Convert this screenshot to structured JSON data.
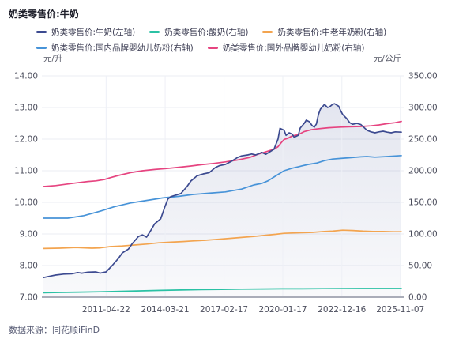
{
  "title": "奶类零售价:牛奶",
  "footer": {
    "source": "数据来源：同花顺iFinD"
  },
  "chart_data": {
    "type": "line",
    "title": "奶类零售价:牛奶",
    "grid": true,
    "legend_position": "top",
    "legend_rows": [
      [
        0,
        1,
        2
      ],
      [
        3,
        4
      ]
    ],
    "left_axis": {
      "unit": "元/升",
      "min": 7,
      "max": 14,
      "ticks": [
        "14.00",
        "13.00",
        "12.00",
        "11.00",
        "10.00",
        "9.00",
        "8.00",
        "7.00"
      ]
    },
    "right_axis": {
      "unit": "元/公斤",
      "min": 0,
      "max": 350,
      "ticks": [
        "350.00",
        "300.00",
        "250.00",
        "200.00",
        "150.00",
        "100.00",
        "50.00",
        "0.00"
      ]
    },
    "x_axis": {
      "domain": [
        2008.2,
        2025.9
      ],
      "ticks": [
        {
          "label": "2011-04-22",
          "t": 2011.3
        },
        {
          "label": "2014-03-21",
          "t": 2014.22
        },
        {
          "label": "2017-02-17",
          "t": 2017.13
        },
        {
          "label": "2020-01-17",
          "t": 2020.04
        },
        {
          "label": "2022-12-16",
          "t": 2022.96
        },
        {
          "label": "2025-11-07",
          "t": 2025.85
        }
      ]
    },
    "series": [
      {
        "name": "奶类零售价:牛奶(左轴)",
        "axis": "left",
        "color": "#3c4a90",
        "area": true,
        "points": [
          [
            2008.2,
            7.62
          ],
          [
            2008.5,
            7.66
          ],
          [
            2008.8,
            7.7
          ],
          [
            2009.2,
            7.73
          ],
          [
            2009.6,
            7.74
          ],
          [
            2009.9,
            7.78
          ],
          [
            2010.1,
            7.76
          ],
          [
            2010.4,
            7.79
          ],
          [
            2010.8,
            7.8
          ],
          [
            2011.0,
            7.76
          ],
          [
            2011.3,
            7.8
          ],
          [
            2011.6,
            8.0
          ],
          [
            2011.9,
            8.22
          ],
          [
            2012.1,
            8.4
          ],
          [
            2012.4,
            8.52
          ],
          [
            2012.6,
            8.7
          ],
          [
            2012.9,
            8.92
          ],
          [
            2013.1,
            8.97
          ],
          [
            2013.3,
            8.9
          ],
          [
            2013.5,
            9.1
          ],
          [
            2013.7,
            9.32
          ],
          [
            2014.0,
            9.48
          ],
          [
            2014.2,
            9.85
          ],
          [
            2014.35,
            10.1
          ],
          [
            2014.5,
            10.18
          ],
          [
            2014.7,
            10.22
          ],
          [
            2015.0,
            10.28
          ],
          [
            2015.3,
            10.5
          ],
          [
            2015.5,
            10.68
          ],
          [
            2015.8,
            10.84
          ],
          [
            2016.1,
            10.9
          ],
          [
            2016.4,
            10.94
          ],
          [
            2016.7,
            11.1
          ],
          [
            2016.9,
            11.16
          ],
          [
            2017.2,
            11.2
          ],
          [
            2017.5,
            11.3
          ],
          [
            2017.8,
            11.42
          ],
          [
            2018.0,
            11.47
          ],
          [
            2018.3,
            11.5
          ],
          [
            2018.5,
            11.53
          ],
          [
            2018.7,
            11.5
          ],
          [
            2019.0,
            11.58
          ],
          [
            2019.2,
            11.52
          ],
          [
            2019.4,
            11.6
          ],
          [
            2019.6,
            11.68
          ],
          [
            2019.8,
            12.0
          ],
          [
            2019.9,
            12.34
          ],
          [
            2020.1,
            12.28
          ],
          [
            2020.2,
            12.12
          ],
          [
            2020.35,
            12.2
          ],
          [
            2020.5,
            12.16
          ],
          [
            2020.6,
            12.06
          ],
          [
            2020.8,
            12.12
          ],
          [
            2020.9,
            12.35
          ],
          [
            2021.1,
            12.5
          ],
          [
            2021.2,
            12.6
          ],
          [
            2021.35,
            12.55
          ],
          [
            2021.5,
            12.42
          ],
          [
            2021.6,
            12.38
          ],
          [
            2021.7,
            12.48
          ],
          [
            2021.8,
            12.78
          ],
          [
            2021.9,
            12.95
          ],
          [
            2022.0,
            13.02
          ],
          [
            2022.1,
            13.1
          ],
          [
            2022.25,
            13.0
          ],
          [
            2022.35,
            13.02
          ],
          [
            2022.5,
            13.1
          ],
          [
            2022.6,
            13.12
          ],
          [
            2022.8,
            13.04
          ],
          [
            2022.9,
            12.9
          ],
          [
            2023.0,
            12.78
          ],
          [
            2023.2,
            12.65
          ],
          [
            2023.35,
            12.52
          ],
          [
            2023.5,
            12.47
          ],
          [
            2023.7,
            12.5
          ],
          [
            2023.9,
            12.46
          ],
          [
            2024.0,
            12.4
          ],
          [
            2024.2,
            12.28
          ],
          [
            2024.4,
            12.23
          ],
          [
            2024.6,
            12.2
          ],
          [
            2024.8,
            12.23
          ],
          [
            2025.0,
            12.25
          ],
          [
            2025.2,
            12.22
          ],
          [
            2025.4,
            12.2
          ],
          [
            2025.6,
            12.23
          ],
          [
            2025.9,
            12.22
          ]
        ]
      },
      {
        "name": "奶类零售价:酸奶(右轴)",
        "axis": "right",
        "color": "#2bc1a4",
        "area": false,
        "points": [
          [
            2008.2,
            7.0
          ],
          [
            2009.0,
            7.5
          ],
          [
            2010.0,
            8.0
          ],
          [
            2011.0,
            8.5
          ],
          [
            2012.0,
            9.2
          ],
          [
            2013.0,
            10.0
          ],
          [
            2014.0,
            10.8
          ],
          [
            2015.0,
            11.4
          ],
          [
            2016.0,
            12.0
          ],
          [
            2017.0,
            12.4
          ],
          [
            2018.0,
            12.8
          ],
          [
            2019.0,
            13.0
          ],
          [
            2020.0,
            13.2
          ],
          [
            2021.0,
            13.3
          ],
          [
            2022.0,
            13.5
          ],
          [
            2023.0,
            13.6
          ],
          [
            2024.0,
            13.7
          ],
          [
            2025.0,
            13.8
          ],
          [
            2025.9,
            13.8
          ]
        ]
      },
      {
        "name": "奶类零售价:中老年奶粉(右轴)",
        "axis": "right",
        "color": "#f3a44f",
        "area": false,
        "points": [
          [
            2008.2,
            77
          ],
          [
            2009.0,
            77.5
          ],
          [
            2009.8,
            78.5
          ],
          [
            2010.6,
            77.5
          ],
          [
            2011.0,
            78
          ],
          [
            2011.5,
            80
          ],
          [
            2012.1,
            81
          ],
          [
            2012.7,
            82.5
          ],
          [
            2013.3,
            84
          ],
          [
            2013.9,
            86
          ],
          [
            2014.5,
            87
          ],
          [
            2015.1,
            88
          ],
          [
            2015.6,
            89
          ],
          [
            2016.2,
            90
          ],
          [
            2016.8,
            91.5
          ],
          [
            2017.4,
            93
          ],
          [
            2018.0,
            94.5
          ],
          [
            2018.6,
            96
          ],
          [
            2019.2,
            98
          ],
          [
            2019.7,
            99.5
          ],
          [
            2020.1,
            101
          ],
          [
            2020.5,
            101.5
          ],
          [
            2021.0,
            102
          ],
          [
            2021.5,
            102.5
          ],
          [
            2022.1,
            104
          ],
          [
            2022.5,
            104.5
          ],
          [
            2023.0,
            106
          ],
          [
            2023.5,
            105.5
          ],
          [
            2024.0,
            104.5
          ],
          [
            2024.5,
            104
          ],
          [
            2025.0,
            104
          ],
          [
            2025.5,
            103.5
          ],
          [
            2025.9,
            103.5
          ]
        ]
      },
      {
        "name": "奶类零售价:国内品牌婴幼儿奶粉(右轴)",
        "axis": "right",
        "color": "#4793d8",
        "area": false,
        "points": [
          [
            2008.2,
            125
          ],
          [
            2009.4,
            125
          ],
          [
            2010.2,
            129
          ],
          [
            2011.0,
            136
          ],
          [
            2011.7,
            143
          ],
          [
            2012.5,
            149
          ],
          [
            2013.3,
            153
          ],
          [
            2014.1,
            157
          ],
          [
            2014.9,
            159.5
          ],
          [
            2015.6,
            162.5
          ],
          [
            2016.4,
            164.5
          ],
          [
            2017.2,
            166.5
          ],
          [
            2018.0,
            171
          ],
          [
            2018.6,
            177.5
          ],
          [
            2019.0,
            180
          ],
          [
            2019.3,
            184
          ],
          [
            2019.7,
            192
          ],
          [
            2020.1,
            200
          ],
          [
            2020.5,
            204
          ],
          [
            2020.9,
            207
          ],
          [
            2021.3,
            210
          ],
          [
            2021.7,
            212
          ],
          [
            2022.1,
            216
          ],
          [
            2022.5,
            218.5
          ],
          [
            2022.9,
            219.5
          ],
          [
            2023.3,
            220.5
          ],
          [
            2023.9,
            222
          ],
          [
            2024.2,
            222.5
          ],
          [
            2024.6,
            221.5
          ],
          [
            2025.2,
            222.5
          ],
          [
            2025.9,
            224
          ]
        ]
      },
      {
        "name": "奶类零售价:国外品牌婴幼儿奶粉(右轴)",
        "axis": "right",
        "color": "#e64480",
        "area": false,
        "points": [
          [
            2008.2,
            175
          ],
          [
            2008.8,
            176.5
          ],
          [
            2009.4,
            179
          ],
          [
            2010.0,
            181.5
          ],
          [
            2010.4,
            183
          ],
          [
            2010.8,
            184
          ],
          [
            2011.2,
            186
          ],
          [
            2011.5,
            189
          ],
          [
            2011.9,
            192.5
          ],
          [
            2012.5,
            197
          ],
          [
            2013.1,
            200
          ],
          [
            2013.7,
            202
          ],
          [
            2014.3,
            203.5
          ],
          [
            2014.9,
            205.5
          ],
          [
            2015.5,
            207.5
          ],
          [
            2016.0,
            209.5
          ],
          [
            2016.6,
            211.5
          ],
          [
            2017.2,
            214
          ],
          [
            2017.8,
            217
          ],
          [
            2018.4,
            221
          ],
          [
            2018.8,
            226
          ],
          [
            2019.1,
            229
          ],
          [
            2019.4,
            232
          ],
          [
            2019.6,
            234
          ],
          [
            2019.8,
            238
          ],
          [
            2019.95,
            244
          ],
          [
            2020.1,
            249.5
          ],
          [
            2020.3,
            251.5
          ],
          [
            2020.5,
            255
          ],
          [
            2020.8,
            257
          ],
          [
            2021.1,
            262
          ],
          [
            2021.4,
            264.5
          ],
          [
            2021.7,
            266
          ],
          [
            2022.0,
            267
          ],
          [
            2022.3,
            268
          ],
          [
            2022.6,
            268.5
          ],
          [
            2022.9,
            269
          ],
          [
            2023.3,
            269.5
          ],
          [
            2023.9,
            270
          ],
          [
            2024.4,
            271
          ],
          [
            2024.8,
            272.5
          ],
          [
            2025.2,
            274.5
          ],
          [
            2025.6,
            276
          ],
          [
            2025.9,
            278
          ]
        ]
      }
    ],
    "colors": {
      "grid": "#ebedf3",
      "vgrid": "#eef0f6",
      "axis_line": "#aaadb9",
      "tick_label": "#4b4d5c",
      "area_top": "rgba(60,76,144,0.14)",
      "area_bottom": "rgba(60,76,144,0.03)"
    }
  }
}
